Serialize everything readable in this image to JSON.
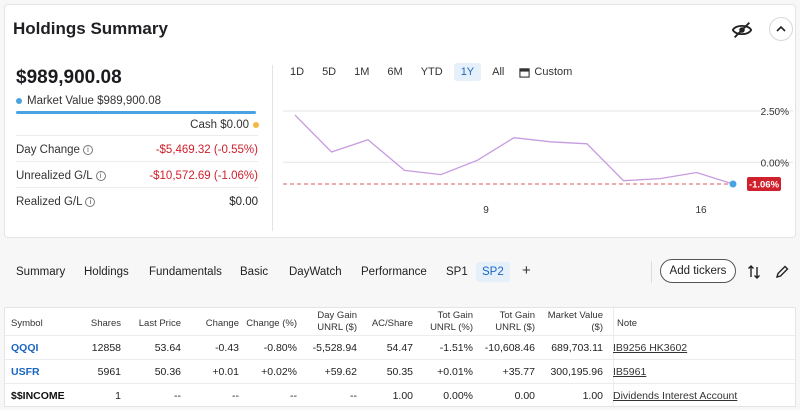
{
  "summary": {
    "title": "Holdings Summary",
    "total": "$989,900.08",
    "market_value": "Market Value $989,900.08",
    "cash": "Cash $0.00",
    "stats": [
      {
        "label": "Day Change",
        "value": "-$5,469.32 (-0.55%)",
        "tone": "neg"
      },
      {
        "label": "Unrealized G/L",
        "value": "-$10,572.69 (-1.06%)",
        "tone": "neg"
      },
      {
        "label": "Realized G/L",
        "value": "$0.00",
        "tone": "neutral"
      }
    ]
  },
  "ranges": [
    "1D",
    "5D",
    "1M",
    "6M",
    "YTD",
    "1Y",
    "All"
  ],
  "active_range": "1Y",
  "custom_label": "Custom",
  "chart_data": {
    "type": "line",
    "x_ticks": [
      "9",
      "16"
    ],
    "y_ticks": [
      "2.50%",
      "0.00%"
    ],
    "points": [
      2.3,
      0.5,
      1.1,
      -0.4,
      -0.6,
      0.1,
      1.2,
      1.0,
      0.9,
      -0.9,
      -0.8,
      -0.5,
      -1.06
    ],
    "baseline": -1.06,
    "current_label": "-1.06%",
    "ylim": [
      -1.5,
      2.5
    ]
  },
  "tabs": [
    "Summary",
    "Holdings",
    "Fundamentals",
    "Basic",
    "DayWatch",
    "Performance",
    "SP1",
    "SP2"
  ],
  "active_tab": "SP2",
  "add_tickers_label": "Add tickers",
  "table": {
    "headers": [
      "Symbol",
      "Shares",
      "Last Price",
      "Change",
      "Change (%)",
      "Day Gain UNRL ($)",
      "AC/Share",
      "Tot Gain UNRL (%)",
      "Tot Gain UNRL ($)",
      "Market Value ($)",
      "Note"
    ],
    "rows": [
      {
        "symbol": "QQQI",
        "link": true,
        "cells": [
          "12858",
          "53.64",
          "-0.43",
          "-0.80%",
          "-5,528.94",
          "54.47",
          "-1.51%",
          "-10,608.46",
          "689,703.11"
        ],
        "tones": [
          "",
          "",
          "neg",
          "neg",
          "neg",
          "",
          "neg",
          "neg",
          ""
        ],
        "note": "IB9256 HK3602"
      },
      {
        "symbol": "USFR",
        "link": true,
        "cells": [
          "5961",
          "50.36",
          "+0.01",
          "+0.02%",
          "+59.62",
          "50.35",
          "+0.01%",
          "+35.77",
          "300,195.96"
        ],
        "tones": [
          "",
          "",
          "pos",
          "pos",
          "pos",
          "",
          "pos",
          "pos",
          ""
        ],
        "note": "IB5961"
      },
      {
        "symbol": "$$INCOME",
        "link": false,
        "cells": [
          "1",
          "--",
          "--",
          "--",
          "--",
          "1.00",
          "0.00%",
          "0.00",
          "1.00"
        ],
        "tones": [
          "",
          "",
          "",
          "",
          "",
          "",
          "",
          "",
          ""
        ],
        "note": "Dividends Interest Account"
      }
    ]
  },
  "colors": {
    "accent": "#1a66c2",
    "negative": "#d0202c",
    "positive": "#1a8a3c",
    "line": "#c79be0",
    "cash_dot": "#f5b942",
    "mv_dot": "#4aa3e0"
  }
}
